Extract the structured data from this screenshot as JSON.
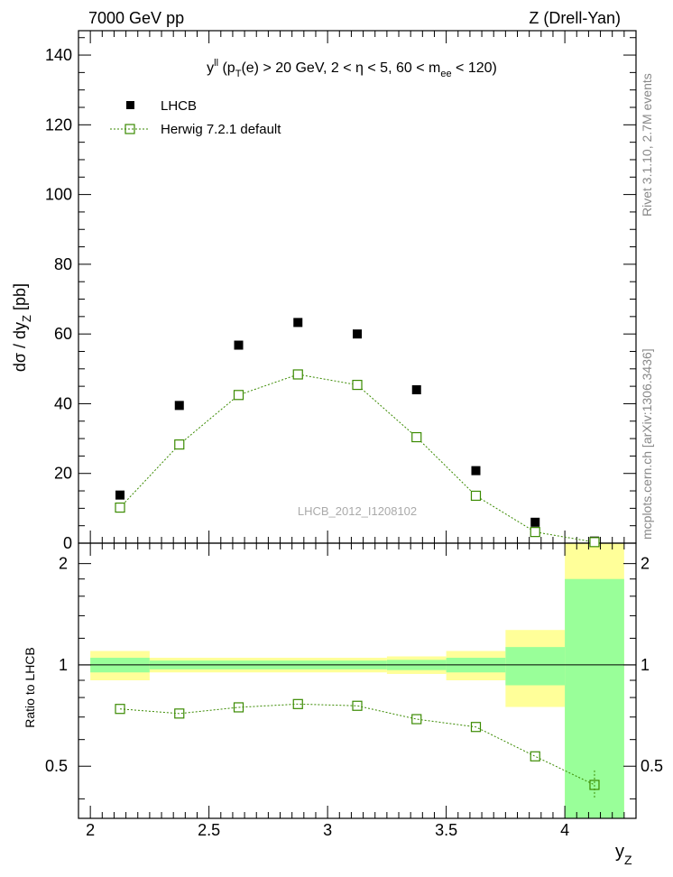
{
  "header": {
    "left": "7000 GeV pp",
    "right": "Z (Drell-Yan)"
  },
  "side_text": {
    "rivet": "Rivet 3.1.10,  2.7M events",
    "mcplots": "mcplots.cern.ch [arXiv:1306.3436]"
  },
  "watermark": "LHCB_2012_I1208102",
  "chart_data": [
    {
      "type": "scatter",
      "panel": "main",
      "title": {
        "base": "y",
        "sup": "ll",
        "part1": " (p",
        "sub1": "T",
        "part2": "(e) > 20 GeV, 2 < η < 5, 60 < m",
        "sub2": "ee",
        "part3": " < 120)"
      },
      "ylabel": {
        "main": "dσ / dy",
        "sub": "Z",
        "tail": " [pb]"
      },
      "xlim": [
        1.95,
        4.3
      ],
      "ylim": [
        0,
        147
      ],
      "yticks": [
        0,
        20,
        40,
        60,
        80,
        100,
        120,
        140
      ],
      "ytick_labels": [
        "0",
        "20",
        "40",
        "60",
        "80",
        "100",
        "120",
        "140"
      ],
      "legend": [
        {
          "label": "LHCB",
          "marker": "filled-square"
        },
        {
          "label": "Herwig 7.2.1 default",
          "marker": "open-square-dashed-line"
        }
      ],
      "series": [
        {
          "name": "LHCB",
          "color": "#000000",
          "x": [
            2.125,
            2.375,
            2.625,
            2.875,
            3.125,
            3.375,
            3.625,
            3.875,
            4.125
          ],
          "y": [
            13.8,
            39.5,
            56.8,
            63.3,
            60.0,
            44.0,
            20.8,
            6.0,
            0.6
          ]
        },
        {
          "name": "Herwig 7.2.1 default",
          "color": "#3a8a00",
          "x": [
            2.125,
            2.375,
            2.625,
            2.875,
            3.125,
            3.375,
            3.625,
            3.875,
            4.125
          ],
          "y": [
            10.2,
            28.3,
            42.5,
            48.4,
            45.4,
            30.4,
            13.6,
            3.2,
            0.3
          ]
        }
      ]
    },
    {
      "type": "scatter",
      "panel": "ratio",
      "ylabel": "Ratio to LHCB",
      "xlabel": {
        "main": "y",
        "sub": "Z"
      },
      "xlim": [
        1.95,
        4.3
      ],
      "ylim": [
        0.35,
        2.3
      ],
      "xticks": [
        2.0,
        2.5,
        3.0,
        3.5,
        4.0
      ],
      "xtick_labels": [
        "2",
        "2.5",
        "3",
        "3.5",
        "4"
      ],
      "yticks": [
        0.5,
        1.0,
        2.0
      ],
      "ytick_labels": [
        "0.5",
        "1",
        "2"
      ],
      "reference_line": 1.0,
      "bands": [
        {
          "x0": 2.0,
          "x1": 2.25,
          "inner": [
            0.95,
            1.05
          ],
          "outer": [
            0.9,
            1.1
          ]
        },
        {
          "x0": 2.25,
          "x1": 3.25,
          "inner": [
            0.97,
            1.03
          ],
          "outer": [
            0.95,
            1.05
          ]
        },
        {
          "x0": 3.25,
          "x1": 3.5,
          "inner": [
            0.965,
            1.035
          ],
          "outer": [
            0.94,
            1.06
          ]
        },
        {
          "x0": 3.5,
          "x1": 3.75,
          "inner": [
            0.95,
            1.05
          ],
          "outer": [
            0.9,
            1.1
          ]
        },
        {
          "x0": 3.75,
          "x1": 4.0,
          "inner": [
            0.87,
            1.13
          ],
          "outer": [
            0.75,
            1.27
          ]
        },
        {
          "x0": 4.0,
          "x1": 4.25,
          "inner": [
            0.35,
            1.8
          ],
          "outer": [
            0.35,
            2.3
          ]
        }
      ],
      "band_colors": {
        "inner": "#99ff99",
        "outer": "#ffff99"
      },
      "series": [
        {
          "name": "Herwig 7.2.1 default / LHCB",
          "color": "#3a8a00",
          "x": [
            2.125,
            2.375,
            2.625,
            2.875,
            3.125,
            3.375,
            3.625,
            3.875,
            4.125
          ],
          "y": [
            0.74,
            0.717,
            0.748,
            0.765,
            0.756,
            0.69,
            0.654,
            0.535,
            0.44
          ]
        }
      ]
    }
  ]
}
